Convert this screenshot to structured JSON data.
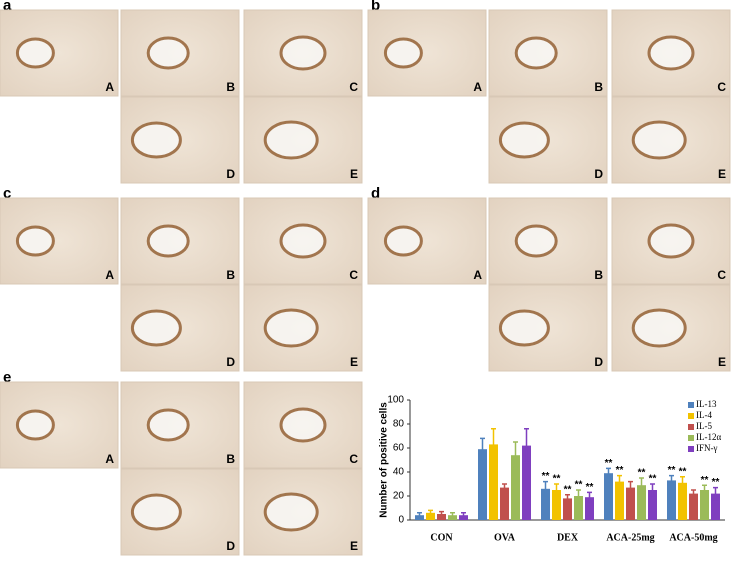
{
  "panels": [
    {
      "label": "a",
      "images": [
        "A",
        "B",
        "C",
        "D",
        "E"
      ]
    },
    {
      "label": "b",
      "images": [
        "A",
        "B",
        "C",
        "D",
        "E"
      ]
    },
    {
      "label": "c",
      "images": [
        "A",
        "B",
        "C",
        "D",
        "E"
      ]
    },
    {
      "label": "d",
      "images": [
        "A",
        "B",
        "C",
        "D",
        "E"
      ]
    },
    {
      "label": "e",
      "images": [
        "A",
        "B",
        "C",
        "D",
        "E"
      ]
    }
  ],
  "chart_data": {
    "type": "bar",
    "y_label": "Number of positive cells",
    "categories": [
      "CON",
      "OVA",
      "DEX",
      "ACA-25mg",
      "ACA-50mg"
    ],
    "ylim": [
      0,
      100
    ],
    "yticks": [
      0,
      20,
      40,
      60,
      80,
      100
    ],
    "legend": "top-right",
    "series": [
      {
        "name": "IL-13",
        "color": "#4f81bd",
        "values": [
          4,
          59,
          26,
          39,
          33
        ],
        "errors": [
          2,
          9,
          6,
          4,
          4
        ],
        "marks": [
          null,
          null,
          "**",
          "**",
          "**"
        ]
      },
      {
        "name": "IL-4",
        "color": "#f2c200",
        "values": [
          6,
          63,
          25,
          32,
          31
        ],
        "errors": [
          2,
          13,
          5,
          5,
          5
        ],
        "marks": [
          null,
          null,
          "**",
          "**",
          "**"
        ]
      },
      {
        "name": "IL-5",
        "color": "#c0504d",
        "values": [
          5,
          27,
          18,
          27,
          22
        ],
        "errors": [
          2,
          3,
          3,
          5,
          3
        ],
        "marks": [
          null,
          null,
          "**",
          null,
          null
        ]
      },
      {
        "name": "IL-12α",
        "color": "#9bbb59",
        "values": [
          4,
          54,
          20,
          29,
          25
        ],
        "errors": [
          2,
          11,
          5,
          6,
          4
        ],
        "marks": [
          null,
          null,
          "**",
          "**",
          "**"
        ]
      },
      {
        "name": "IFN-γ",
        "color": "#7f3fbf",
        "values": [
          4,
          62,
          19,
          25,
          22
        ],
        "errors": [
          2,
          14,
          4,
          5,
          5
        ],
        "marks": [
          null,
          null,
          "**",
          "**",
          "**"
        ]
      }
    ]
  }
}
